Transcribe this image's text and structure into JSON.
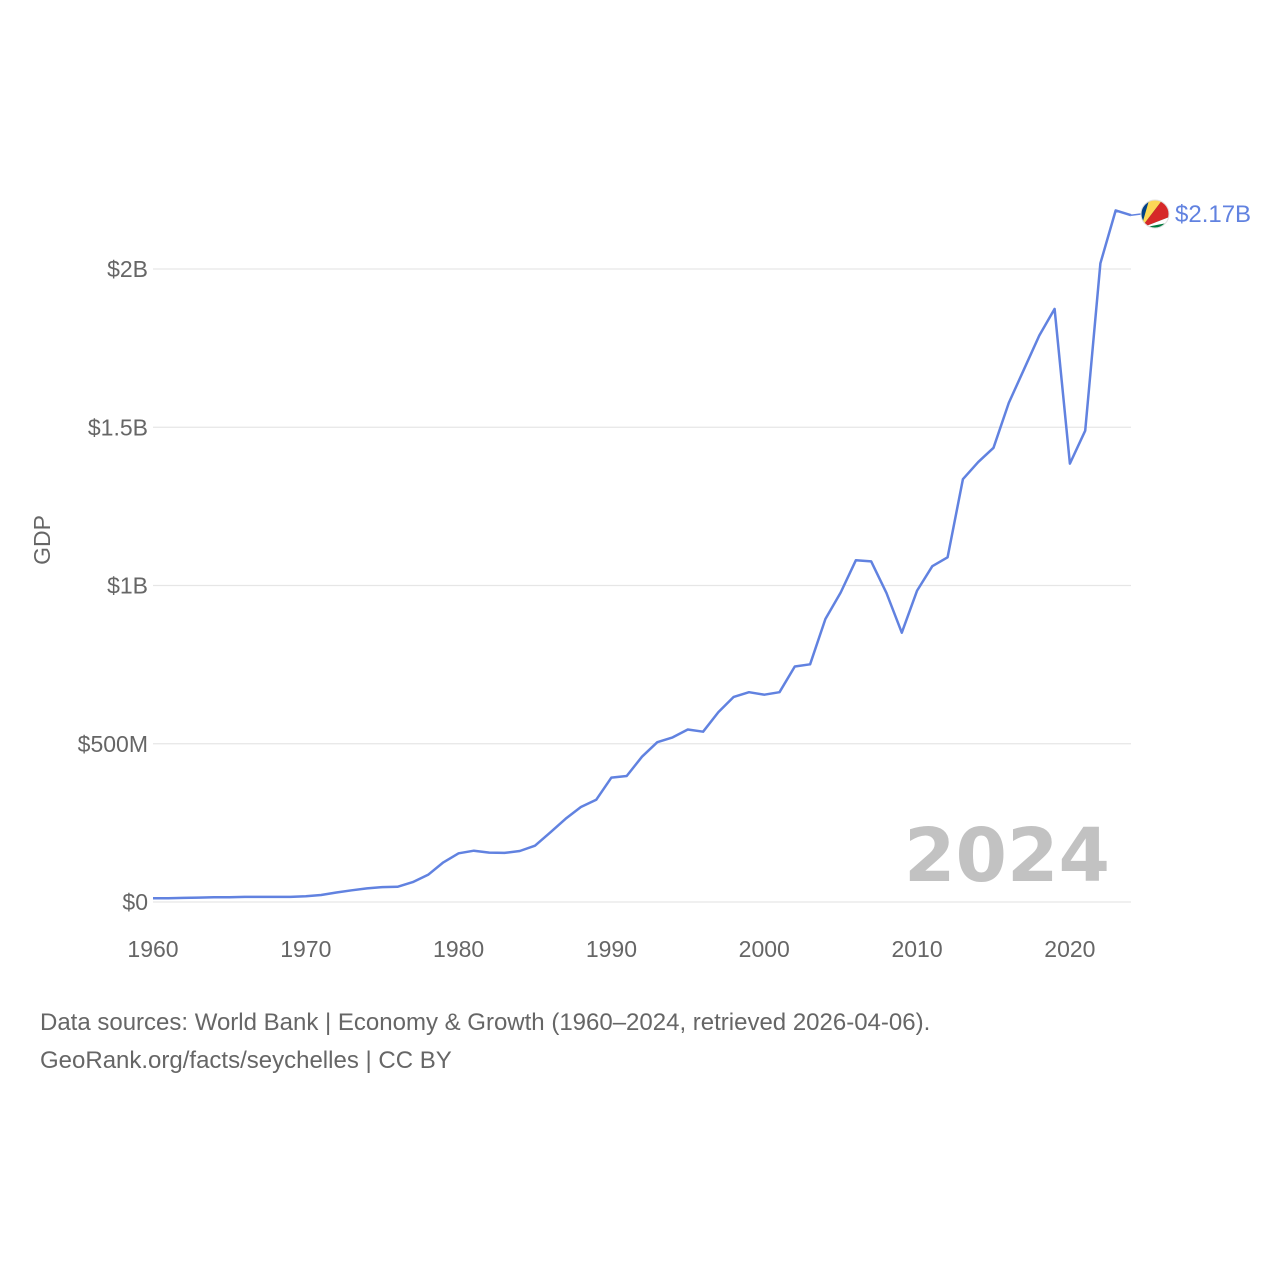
{
  "chart_data": {
    "type": "line",
    "title": "",
    "xlabel": "",
    "ylabel": "GDP",
    "xlim": [
      1960,
      2024
    ],
    "ylim": [
      0,
      2300000000
    ],
    "x_ticks": [
      1960,
      1970,
      1980,
      1990,
      2000,
      2010,
      2020
    ],
    "x_tick_labels": [
      "1960",
      "1970",
      "1980",
      "1990",
      "2000",
      "2010",
      "2020"
    ],
    "y_ticks": [
      0,
      500000000,
      1000000000,
      1500000000,
      2000000000
    ],
    "y_tick_labels": [
      "$0",
      "$500M",
      "$1B",
      "$1.5B",
      "$2B"
    ],
    "grid": true,
    "current_year_label": "2024",
    "series": [
      {
        "name": "Seychelles",
        "color": "#6182e0",
        "end_label": "$2.17B",
        "x": [
          1960,
          1961,
          1962,
          1963,
          1964,
          1965,
          1966,
          1967,
          1968,
          1969,
          1970,
          1971,
          1972,
          1973,
          1974,
          1975,
          1976,
          1977,
          1978,
          1979,
          1980,
          1981,
          1982,
          1983,
          1984,
          1985,
          1986,
          1987,
          1988,
          1989,
          1990,
          1991,
          1992,
          1993,
          1994,
          1995,
          1996,
          1997,
          1998,
          1999,
          2000,
          2001,
          2002,
          2003,
          2004,
          2005,
          2006,
          2007,
          2008,
          2009,
          2010,
          2011,
          2012,
          2013,
          2014,
          2015,
          2016,
          2017,
          2018,
          2019,
          2020,
          2021,
          2022,
          2023,
          2024
        ],
        "values": [
          12000000,
          12000000,
          13000000,
          14000000,
          15000000,
          15000000,
          16000000,
          16000000,
          16000000,
          16000000,
          18000000,
          22000000,
          30000000,
          37000000,
          43000000,
          47000000,
          48000000,
          63000000,
          86000000,
          125000000,
          154000000,
          162000000,
          156000000,
          155000000,
          161000000,
          178000000,
          220000000,
          263000000,
          300000000,
          323000000,
          393000000,
          398000000,
          459000000,
          505000000,
          520000000,
          545000000,
          538000000,
          600000000,
          648000000,
          663000000,
          655000000,
          663000000,
          744000000,
          751000000,
          894000000,
          978000000,
          1080000000,
          1076000000,
          976000000,
          851000000,
          984000000,
          1061000000,
          1089000000,
          1336000000,
          1390000000,
          1435000000,
          1577000000,
          1683000000,
          1790000000,
          1874000000,
          1385000000,
          1489000000,
          2018000000,
          2185000000,
          2170000000
        ]
      }
    ]
  },
  "footer": {
    "line1": "Data sources: World Bank | Economy & Growth (1960–2024, retrieved 2026-04-06).",
    "line2": "GeoRank.org/facts/seychelles | CC BY"
  }
}
